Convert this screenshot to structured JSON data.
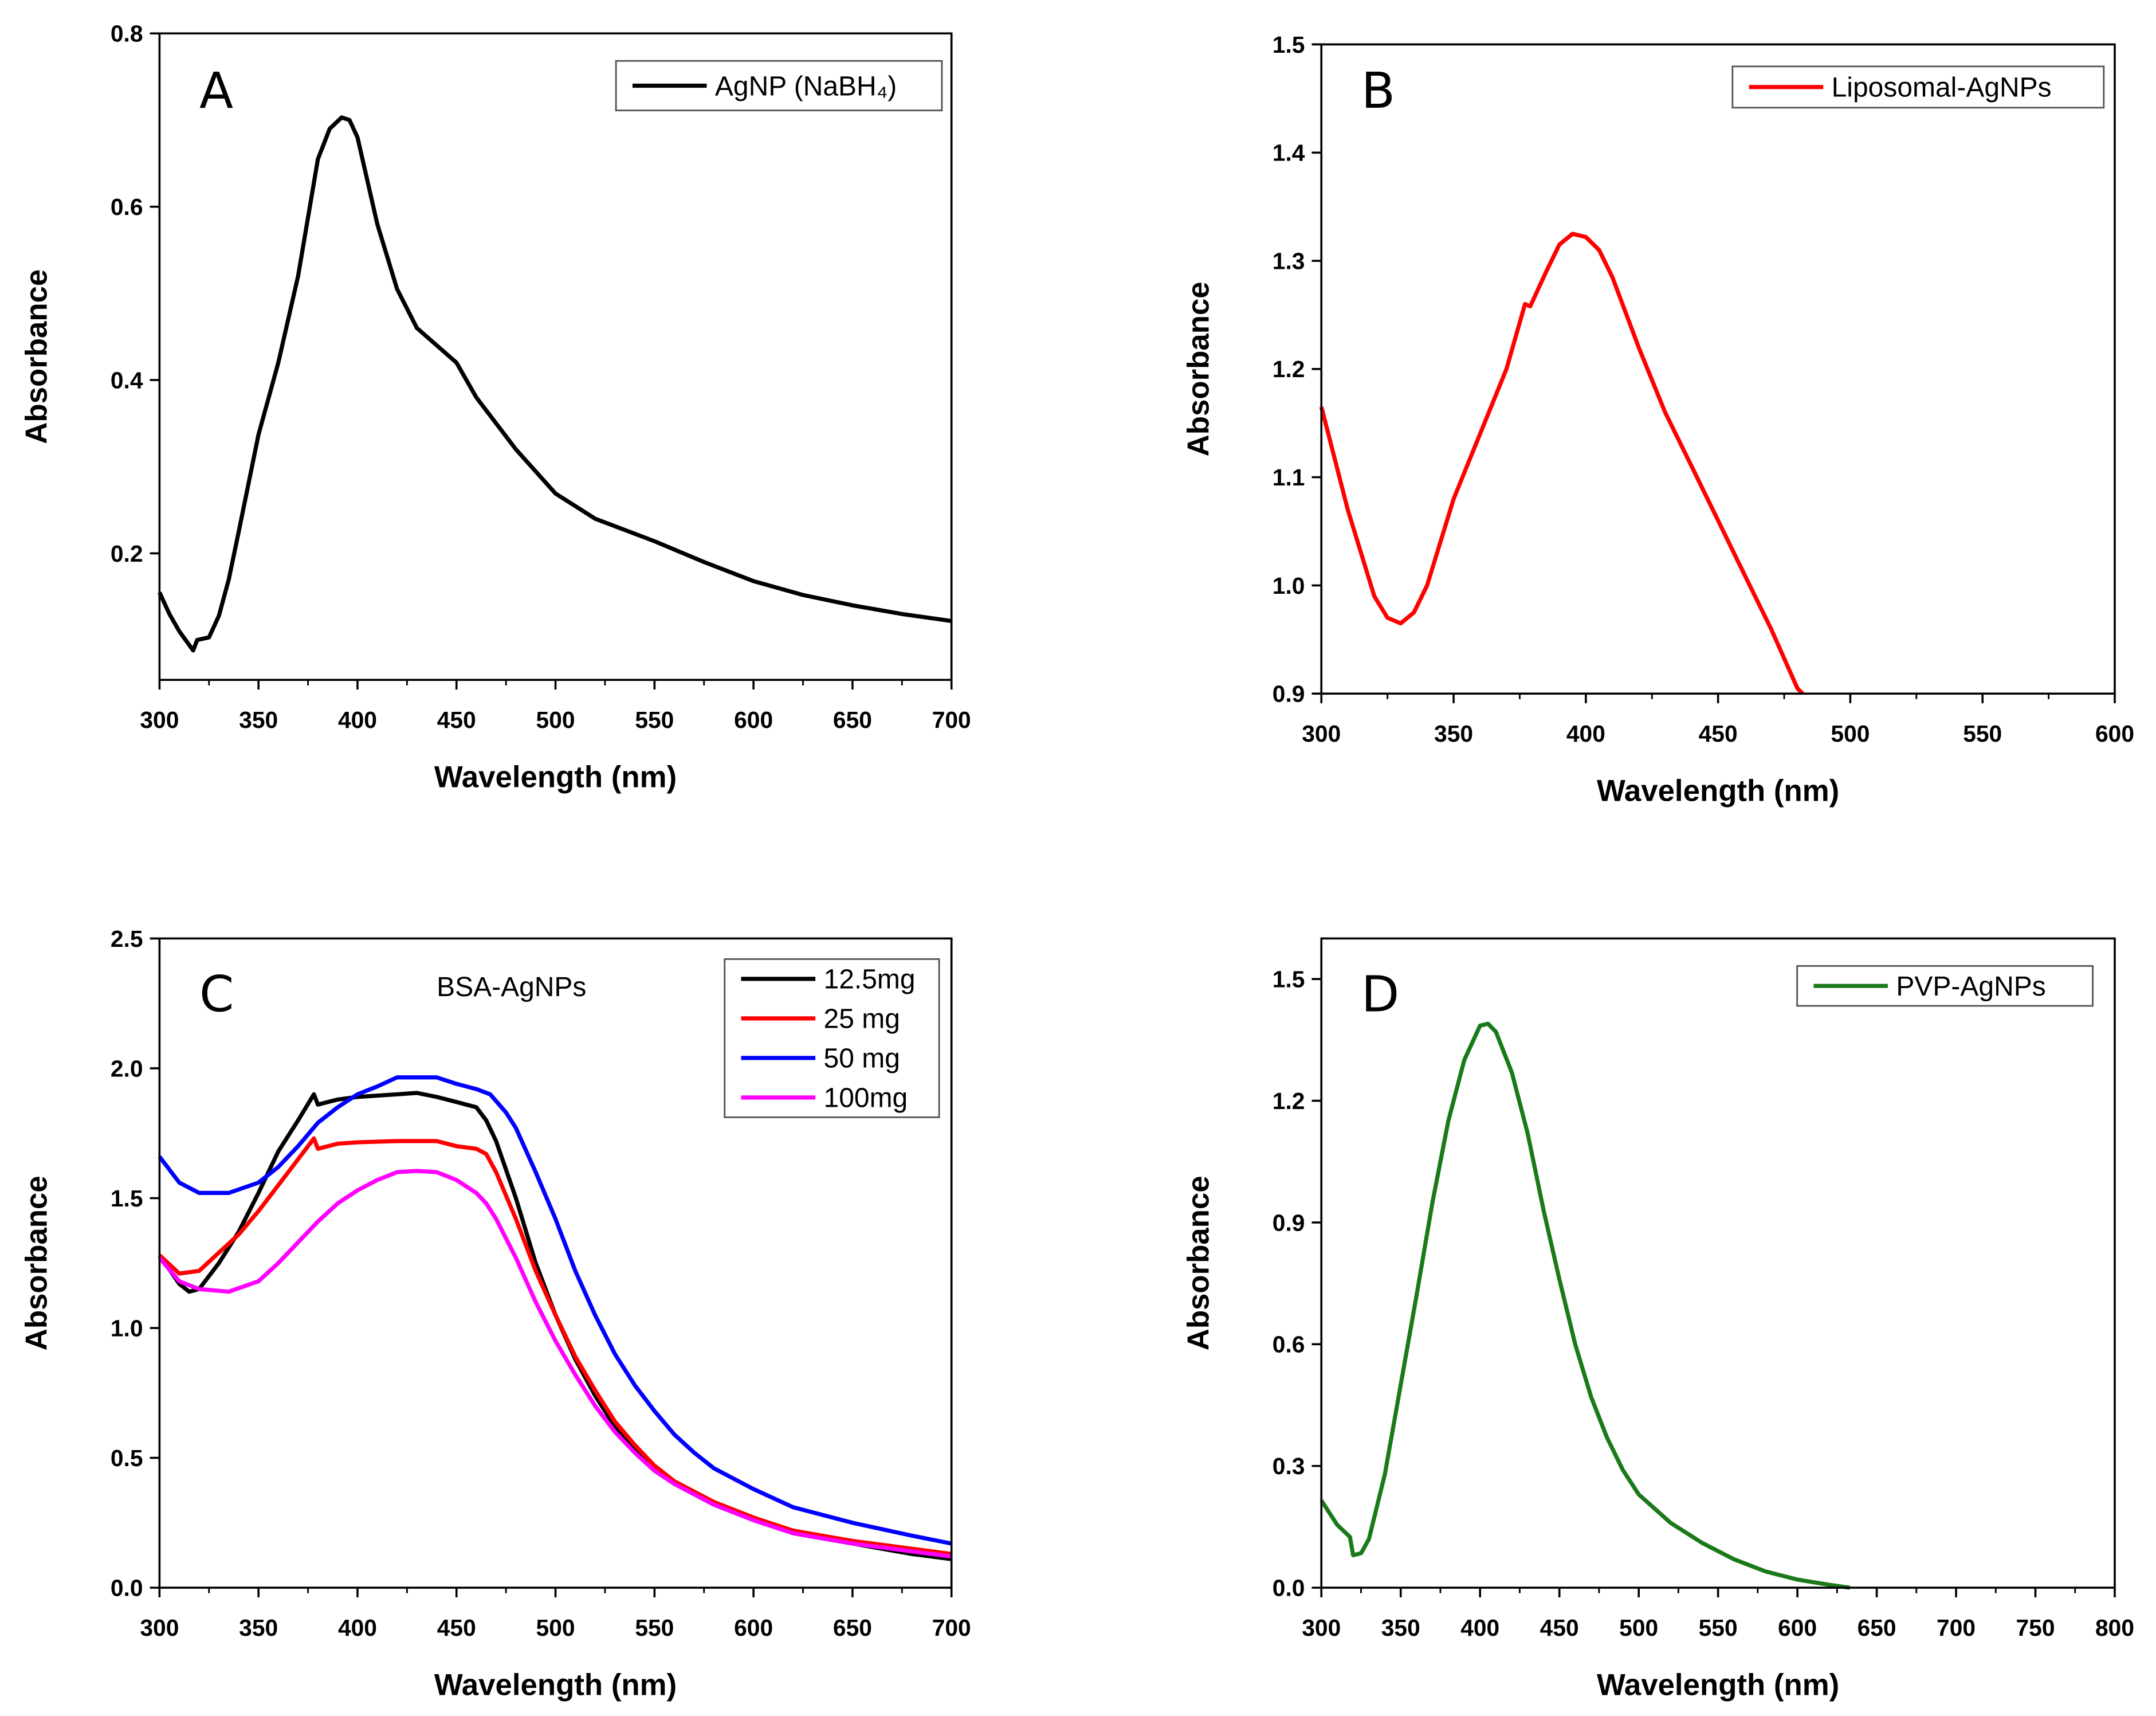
{
  "chart_data": [
    {
      "type": "line",
      "panel": "A",
      "xlabel": "Wavelength (nm)",
      "ylabel": "Absorbance",
      "xlim": [
        300,
        700
      ],
      "ylim": [
        0.054,
        0.8
      ],
      "xticks": [
        300,
        350,
        400,
        450,
        500,
        550,
        600,
        650,
        700
      ],
      "yticks": [
        0.2,
        0.4,
        0.6,
        0.8
      ],
      "legend_position": "top-right",
      "series": [
        {
          "name": "AgNP (NaBH₄)",
          "color": "#000000",
          "x": [
            300,
            305,
            310,
            317,
            319,
            325,
            330,
            335,
            340,
            350,
            360,
            370,
            380,
            386,
            392,
            396,
            400,
            410,
            420,
            430,
            440,
            450,
            460,
            470,
            480,
            500,
            520,
            550,
            575,
            600,
            625,
            650,
            675,
            700
          ],
          "y": [
            0.155,
            0.13,
            0.11,
            0.088,
            0.1,
            0.103,
            0.128,
            0.17,
            0.225,
            0.337,
            0.42,
            0.52,
            0.655,
            0.69,
            0.703,
            0.7,
            0.68,
            0.58,
            0.505,
            0.46,
            0.44,
            0.42,
            0.38,
            0.35,
            0.32,
            0.269,
            0.24,
            0.214,
            0.19,
            0.168,
            0.152,
            0.14,
            0.13,
            0.122
          ]
        }
      ]
    },
    {
      "type": "line",
      "panel": "B",
      "xlabel": "Wavelength (nm)",
      "ylabel": "Absorbance",
      "xlim": [
        300,
        600
      ],
      "ylim": [
        0.9,
        1.5
      ],
      "xticks": [
        300,
        350,
        400,
        450,
        500,
        550,
        600
      ],
      "yticks": [
        0.9,
        1.0,
        1.1,
        1.2,
        1.3,
        1.4,
        1.5
      ],
      "legend_position": "top-right",
      "series": [
        {
          "name": "Liposomal-AgNPs",
          "color": "#ff0000",
          "x": [
            300,
            310,
            320,
            325,
            330,
            335,
            340,
            350,
            360,
            370,
            377,
            379,
            385,
            390,
            395,
            400,
            405,
            410,
            420,
            430,
            440,
            450,
            460,
            470,
            480,
            482
          ],
          "y": [
            1.165,
            1.07,
            0.99,
            0.97,
            0.965,
            0.975,
            1.0,
            1.08,
            1.14,
            1.2,
            1.26,
            1.258,
            1.29,
            1.315,
            1.325,
            1.322,
            1.31,
            1.285,
            1.22,
            1.16,
            1.11,
            1.06,
            1.01,
            0.96,
            0.905,
            0.9
          ]
        }
      ]
    },
    {
      "type": "line",
      "panel": "C",
      "annotation": "BSA-AgNPs",
      "xlabel": "Wavelength (nm)",
      "ylabel": "Absorbance",
      "xlim": [
        300,
        700
      ],
      "ylim": [
        0,
        2.5
      ],
      "xticks": [
        300,
        350,
        400,
        450,
        500,
        550,
        600,
        650,
        700
      ],
      "yticks": [
        0.0,
        0.5,
        1.0,
        1.5,
        2.0,
        2.5
      ],
      "legend_position": "top-right",
      "series": [
        {
          "name": "12.5mg",
          "color": "#000000",
          "x": [
            300,
            310,
            315,
            320,
            330,
            340,
            350,
            360,
            370,
            378,
            380,
            390,
            400,
            420,
            430,
            440,
            450,
            460,
            465,
            470,
            480,
            490,
            500,
            510,
            520,
            530,
            540,
            550,
            560,
            580,
            600,
            620,
            650,
            680,
            700
          ],
          "y": [
            1.28,
            1.17,
            1.14,
            1.15,
            1.25,
            1.37,
            1.52,
            1.68,
            1.8,
            1.9,
            1.86,
            1.88,
            1.89,
            1.9,
            1.905,
            1.89,
            1.87,
            1.85,
            1.8,
            1.72,
            1.5,
            1.25,
            1.05,
            0.88,
            0.74,
            0.62,
            0.53,
            0.46,
            0.4,
            0.32,
            0.26,
            0.21,
            0.17,
            0.13,
            0.11
          ]
        },
        {
          "name": "25 mg",
          "color": "#ff0000",
          "x": [
            300,
            310,
            320,
            330,
            340,
            350,
            360,
            370,
            378,
            380,
            390,
            400,
            420,
            440,
            450,
            460,
            465,
            470,
            480,
            490,
            500,
            510,
            520,
            530,
            540,
            550,
            560,
            580,
            600,
            620,
            650,
            680,
            700
          ],
          "y": [
            1.28,
            1.21,
            1.22,
            1.29,
            1.36,
            1.45,
            1.55,
            1.65,
            1.73,
            1.69,
            1.71,
            1.715,
            1.72,
            1.72,
            1.7,
            1.69,
            1.67,
            1.6,
            1.42,
            1.22,
            1.05,
            0.89,
            0.76,
            0.64,
            0.55,
            0.47,
            0.41,
            0.33,
            0.27,
            0.22,
            0.18,
            0.15,
            0.13
          ]
        },
        {
          "name": "50 mg",
          "color": "#0000ff",
          "x": [
            300,
            310,
            320,
            335,
            350,
            360,
            370,
            380,
            390,
            400,
            410,
            420,
            440,
            450,
            460,
            467,
            475,
            480,
            490,
            500,
            510,
            520,
            530,
            540,
            550,
            560,
            570,
            580,
            600,
            620,
            650,
            680,
            700
          ],
          "y": [
            1.66,
            1.56,
            1.52,
            1.52,
            1.56,
            1.62,
            1.7,
            1.79,
            1.85,
            1.9,
            1.93,
            1.965,
            1.965,
            1.94,
            1.92,
            1.9,
            1.83,
            1.77,
            1.6,
            1.42,
            1.22,
            1.05,
            0.9,
            0.78,
            0.68,
            0.59,
            0.52,
            0.46,
            0.38,
            0.31,
            0.25,
            0.2,
            0.17
          ]
        },
        {
          "name": "100mg",
          "color": "#ff00ff",
          "x": [
            300,
            310,
            320,
            335,
            350,
            360,
            370,
            380,
            390,
            400,
            410,
            420,
            430,
            440,
            450,
            460,
            465,
            470,
            480,
            490,
            500,
            510,
            520,
            530,
            540,
            550,
            560,
            580,
            600,
            620,
            650,
            680,
            700
          ],
          "y": [
            1.27,
            1.18,
            1.15,
            1.14,
            1.18,
            1.25,
            1.33,
            1.41,
            1.48,
            1.53,
            1.57,
            1.6,
            1.605,
            1.6,
            1.57,
            1.52,
            1.48,
            1.42,
            1.27,
            1.1,
            0.95,
            0.82,
            0.7,
            0.6,
            0.52,
            0.45,
            0.4,
            0.32,
            0.26,
            0.21,
            0.17,
            0.14,
            0.12
          ]
        }
      ]
    },
    {
      "type": "line",
      "panel": "D",
      "xlabel": "Wavelength (nm)",
      "ylabel": "Absorbance",
      "xlim": [
        300,
        800
      ],
      "ylim": [
        0,
        1.6
      ],
      "xticks": [
        300,
        350,
        400,
        450,
        500,
        550,
        600,
        650,
        700,
        750,
        800
      ],
      "yticks": [
        0.0,
        0.3,
        0.6,
        0.9,
        1.2,
        1.5
      ],
      "legend_position": "top-right",
      "series": [
        {
          "name": "PVP-AgNPs",
          "color": "#1a7a1a",
          "x": [
            300,
            310,
            318,
            320,
            325,
            330,
            340,
            350,
            360,
            370,
            380,
            390,
            400,
            405,
            410,
            420,
            430,
            440,
            450,
            460,
            470,
            480,
            490,
            500,
            520,
            540,
            560,
            580,
            600,
            620,
            633
          ],
          "y": [
            0.215,
            0.155,
            0.125,
            0.08,
            0.085,
            0.12,
            0.28,
            0.5,
            0.72,
            0.95,
            1.15,
            1.3,
            1.385,
            1.39,
            1.37,
            1.27,
            1.12,
            0.93,
            0.76,
            0.6,
            0.47,
            0.37,
            0.29,
            0.23,
            0.16,
            0.11,
            0.07,
            0.04,
            0.02,
            0.007,
            0
          ]
        }
      ]
    }
  ]
}
